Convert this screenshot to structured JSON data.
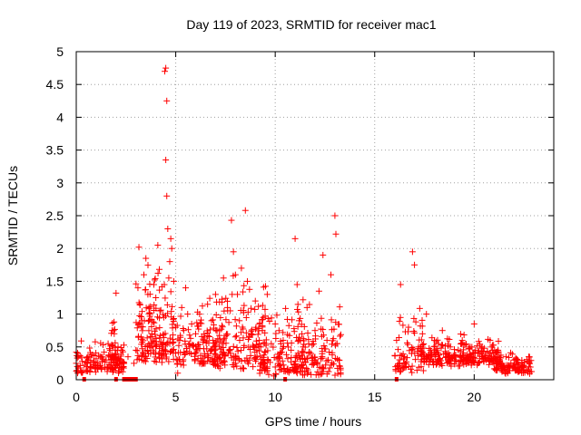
{
  "chart_data": {
    "type": "scatter",
    "title": "Day 119 of 2023, SRMTID for receiver mac1",
    "xlabel": "GPS time / hours",
    "ylabel": "SRMTID / TECUs",
    "xlim": [
      0,
      24
    ],
    "ylim": [
      0,
      5
    ],
    "xticks": [
      0,
      5,
      10,
      15,
      20
    ],
    "xtick_labels": [
      "0",
      "5",
      "10",
      "15",
      "20"
    ],
    "yticks": [
      0,
      0.5,
      1,
      1.5,
      2,
      2.5,
      3,
      3.5,
      4,
      4.5,
      5
    ],
    "ytick_labels": [
      "0",
      "0.5",
      "1",
      "1.5",
      "2",
      "2.5",
      "3",
      "3.5",
      "4",
      "4.5",
      "5"
    ],
    "grid": true,
    "marker": "plus",
    "series_color": "#ff0000",
    "series": [
      {
        "name": "SRMTID",
        "points": [
          [
            0.0,
            0.25
          ],
          [
            0.1,
            0.35
          ],
          [
            0.2,
            0.18
          ],
          [
            0.3,
            0.28
          ],
          [
            0.4,
            0.22
          ],
          [
            0.5,
            0.15
          ],
          [
            0.6,
            0.3
          ],
          [
            0.7,
            0.2
          ],
          [
            0.8,
            0.38
          ],
          [
            0.9,
            0.25
          ],
          [
            1.0,
            0.32
          ],
          [
            1.1,
            0.22
          ],
          [
            1.2,
            0.35
          ],
          [
            1.3,
            0.28
          ],
          [
            1.4,
            0.42
          ],
          [
            1.5,
            0.3
          ],
          [
            1.6,
            0.55
          ],
          [
            1.7,
            0.45
          ],
          [
            1.8,
            0.75
          ],
          [
            1.9,
            0.88
          ],
          [
            2.0,
            1.32
          ],
          [
            2.1,
            0.5
          ],
          [
            2.2,
            0.3
          ],
          [
            2.3,
            0.45
          ],
          [
            2.4,
            0.25
          ],
          [
            2.6,
            0.35
          ],
          [
            2.9,
            0.25
          ],
          [
            3.0,
            0.45
          ],
          [
            3.1,
            1.4
          ],
          [
            3.15,
            2.02
          ],
          [
            3.2,
            1.15
          ],
          [
            3.3,
            0.9
          ],
          [
            3.4,
            1.6
          ],
          [
            3.5,
            1.85
          ],
          [
            3.6,
            1.3
          ],
          [
            3.7,
            1.0
          ],
          [
            3.8,
            0.7
          ],
          [
            3.9,
            1.45
          ],
          [
            4.0,
            1.25
          ],
          [
            4.1,
            2.05
          ],
          [
            4.2,
            1.05
          ],
          [
            4.3,
            0.5
          ],
          [
            4.4,
            0.95
          ],
          [
            4.45,
            4.7
          ],
          [
            4.5,
            4.75
          ],
          [
            4.55,
            4.25
          ],
          [
            4.5,
            3.35
          ],
          [
            4.55,
            2.8
          ],
          [
            4.6,
            2.3
          ],
          [
            4.65,
            1.55
          ],
          [
            4.7,
            1.8
          ],
          [
            4.75,
            2.15
          ],
          [
            4.8,
            2.0
          ],
          [
            4.9,
            1.5
          ],
          [
            5.0,
            0.8
          ],
          [
            5.1,
            0.1
          ],
          [
            5.2,
            0.6
          ],
          [
            5.3,
            1.1
          ],
          [
            5.4,
            0.75
          ],
          [
            5.5,
            1.4
          ],
          [
            5.6,
            1.0
          ],
          [
            5.7,
            0.55
          ],
          [
            5.8,
            0.85
          ],
          [
            6.0,
            0.7
          ],
          [
            6.2,
            1.0
          ],
          [
            6.4,
            0.6
          ],
          [
            6.6,
            1.15
          ],
          [
            6.8,
            0.9
          ],
          [
            7.0,
            1.3
          ],
          [
            7.2,
            0.75
          ],
          [
            7.4,
            1.55
          ],
          [
            7.6,
            1.1
          ],
          [
            7.8,
            2.43
          ],
          [
            7.9,
            1.95
          ],
          [
            8.0,
            1.6
          ],
          [
            8.1,
            1.3
          ],
          [
            8.2,
            0.9
          ],
          [
            8.3,
            1.7
          ],
          [
            8.5,
            2.58
          ],
          [
            8.6,
            1.5
          ],
          [
            8.8,
            0.7
          ],
          [
            9.0,
            1.2
          ],
          [
            9.2,
            0.6
          ],
          [
            9.4,
            0.95
          ],
          [
            9.6,
            1.3
          ],
          [
            9.8,
            0.55
          ],
          [
            10.0,
            0.85
          ],
          [
            10.2,
            0.35
          ],
          [
            10.4,
            0.6
          ],
          [
            10.6,
            0.15
          ],
          [
            10.8,
            0.45
          ],
          [
            11.0,
            2.15
          ],
          [
            11.1,
            1.45
          ],
          [
            11.2,
            0.9
          ],
          [
            11.4,
            0.5
          ],
          [
            11.6,
            1.1
          ],
          [
            11.8,
            0.4
          ],
          [
            12.0,
            0.75
          ],
          [
            12.2,
            1.35
          ],
          [
            12.4,
            1.9
          ],
          [
            12.6,
            0.6
          ],
          [
            12.8,
            1.6
          ],
          [
            13.0,
            2.5
          ],
          [
            13.05,
            2.22
          ],
          [
            13.1,
            0.55
          ],
          [
            13.2,
            0.3
          ],
          [
            16.1,
            0.6
          ],
          [
            16.3,
            1.45
          ],
          [
            16.5,
            0.35
          ],
          [
            16.7,
            0.8
          ],
          [
            16.9,
            1.95
          ],
          [
            17.0,
            1.75
          ],
          [
            17.2,
            0.5
          ],
          [
            17.4,
            0.7
          ],
          [
            17.6,
            1.0
          ],
          [
            17.8,
            0.45
          ],
          [
            18.0,
            0.6
          ],
          [
            18.2,
            0.55
          ],
          [
            18.4,
            0.75
          ],
          [
            18.6,
            0.4
          ],
          [
            18.8,
            0.5
          ],
          [
            19.0,
            0.35
          ],
          [
            19.2,
            0.45
          ],
          [
            19.4,
            0.6
          ],
          [
            19.6,
            0.3
          ],
          [
            19.8,
            0.5
          ],
          [
            20.0,
            0.85
          ],
          [
            20.2,
            0.4
          ],
          [
            20.4,
            0.5
          ],
          [
            20.6,
            0.3
          ],
          [
            20.8,
            0.6
          ],
          [
            21.0,
            0.35
          ],
          [
            21.2,
            0.45
          ],
          [
            21.4,
            0.25
          ],
          [
            21.6,
            0.35
          ],
          [
            21.8,
            0.2
          ],
          [
            22.0,
            0.3
          ],
          [
            22.2,
            0.18
          ],
          [
            22.4,
            0.22
          ],
          [
            22.6,
            0.15
          ],
          [
            22.8,
            0.12
          ]
        ]
      }
    ],
    "clusters": [
      {
        "x0": 0.0,
        "x1": 2.4,
        "y_lo": 0.08,
        "y_hi": 0.55,
        "n": 120
      },
      {
        "x0": 1.6,
        "x1": 2.1,
        "y_lo": 0.2,
        "y_hi": 0.9,
        "n": 25
      },
      {
        "x0": 3.0,
        "x1": 5.0,
        "y_lo": 0.25,
        "y_hi": 1.9,
        "n": 160
      },
      {
        "x0": 5.0,
        "x1": 7.5,
        "y_lo": 0.2,
        "y_hi": 1.2,
        "n": 140
      },
      {
        "x0": 7.0,
        "x1": 9.6,
        "y_lo": 0.15,
        "y_hi": 1.8,
        "n": 150
      },
      {
        "x0": 9.2,
        "x1": 11.4,
        "y_lo": 0.05,
        "y_hi": 1.1,
        "n": 120
      },
      {
        "x0": 11.0,
        "x1": 13.3,
        "y_lo": 0.05,
        "y_hi": 1.4,
        "n": 130
      },
      {
        "x0": 16.0,
        "x1": 17.5,
        "y_lo": 0.1,
        "y_hi": 1.05,
        "n": 70
      },
      {
        "x0": 17.3,
        "x1": 19.5,
        "y_lo": 0.2,
        "y_hi": 0.75,
        "n": 130
      },
      {
        "x0": 19.3,
        "x1": 21.3,
        "y_lo": 0.2,
        "y_hi": 0.65,
        "n": 120
      },
      {
        "x0": 21.0,
        "x1": 22.9,
        "y_lo": 0.08,
        "y_hi": 0.4,
        "n": 100
      }
    ],
    "baseline_markers": [
      [
        0.4,
        0.4
      ],
      [
        2.0,
        2.0
      ],
      [
        2.4,
        3.0
      ],
      [
        10.5,
        10.5
      ],
      [
        16.1,
        16.1
      ]
    ]
  }
}
